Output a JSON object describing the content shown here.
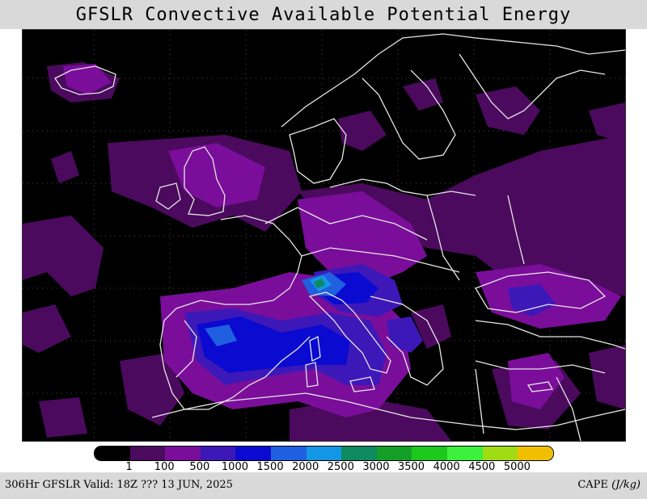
{
  "title": "GFSLR Convective Available Potential Energy",
  "legend": {
    "colors": [
      "#000000",
      "#4b0a5e",
      "#7a0e9a",
      "#3d18b8",
      "#0a0ad0",
      "#1f5fe0",
      "#1496e6",
      "#0c8a60",
      "#14a028",
      "#1cc81c",
      "#3cf03c",
      "#a0dc14",
      "#f0c000"
    ],
    "ticks": [
      "1",
      "100",
      "500",
      "1000",
      "1500",
      "2000",
      "2500",
      "3000",
      "3500",
      "4000",
      "4500",
      "5000"
    ]
  },
  "footer": {
    "left": "306Hr GFSLR Valid: 18Z ??? 13 JUN, 2025",
    "right_label": "CAPE",
    "right_units": "(J/kg)"
  },
  "map": {
    "background_color": "#000000",
    "coastline_color": "#e6e6e6",
    "grid_color": "#555555"
  }
}
